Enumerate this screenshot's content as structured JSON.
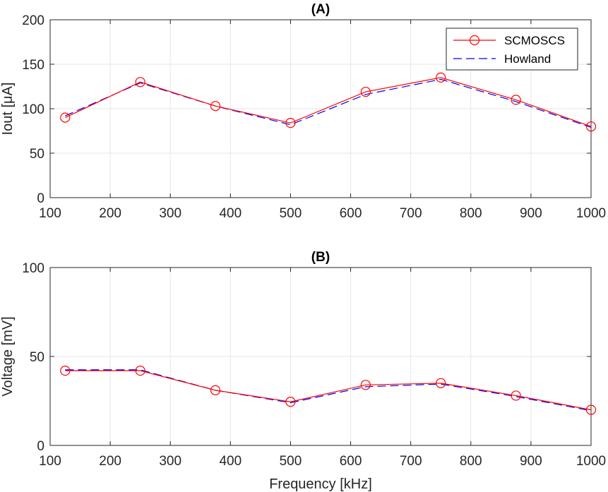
{
  "chart_data": [
    {
      "type": "line",
      "title": "(A)",
      "xlabel": "",
      "ylabel": "Iout [μA]",
      "xlim": [
        100,
        1000
      ],
      "ylim": [
        0,
        200
      ],
      "xticks": [
        100,
        200,
        300,
        400,
        500,
        600,
        700,
        800,
        900,
        1000
      ],
      "yticks": [
        0,
        50,
        100,
        150,
        200
      ],
      "grid": true,
      "legend": {
        "position": "top-right",
        "entries": [
          "SCMOSCS",
          "Howland"
        ]
      },
      "x": [
        125,
        250,
        375,
        500,
        625,
        750,
        875,
        1000
      ],
      "series": [
        {
          "name": "SCMOSCS",
          "color": "#ff0000",
          "style": "solid",
          "marker": "circle",
          "values": [
            90,
            130,
            103,
            84,
            119,
            135,
            110,
            80
          ]
        },
        {
          "name": "Howland",
          "color": "#0000ff",
          "style": "dashed",
          "marker": "none",
          "values": [
            92,
            129,
            103,
            82,
            116,
            133,
            108,
            79
          ]
        }
      ]
    },
    {
      "type": "line",
      "title": "(B)",
      "xlabel": "Frequency [kHz]",
      "ylabel": "Voltage [mV]",
      "xlim": [
        100,
        1000
      ],
      "ylim": [
        0,
        100
      ],
      "xticks": [
        100,
        200,
        300,
        400,
        500,
        600,
        700,
        800,
        900,
        1000
      ],
      "yticks": [
        0,
        50,
        100
      ],
      "grid": true,
      "x": [
        125,
        250,
        375,
        500,
        625,
        750,
        875,
        1000
      ],
      "series": [
        {
          "name": "SCMOSCS",
          "color": "#ff0000",
          "style": "solid",
          "marker": "circle",
          "values": [
            42,
            42,
            31,
            24.5,
            34,
            35,
            28,
            20
          ]
        },
        {
          "name": "Howland",
          "color": "#0000ff",
          "style": "dashed",
          "marker": "none",
          "values": [
            42.5,
            42.5,
            31,
            24,
            33,
            34.5,
            27.5,
            19.5
          ]
        }
      ]
    }
  ]
}
